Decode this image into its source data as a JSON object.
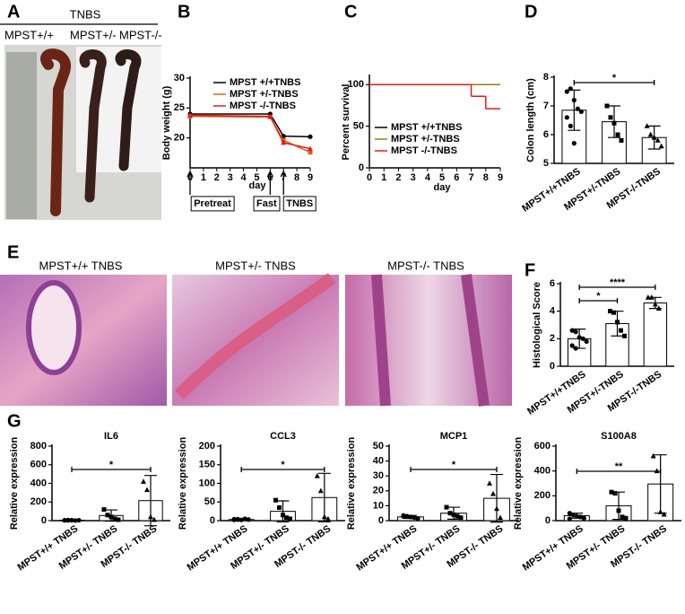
{
  "panel_labels": [
    "A",
    "B",
    "C",
    "D",
    "E",
    "F",
    "G"
  ],
  "photo": {
    "treatment": "TNBS",
    "genotypes": [
      "MPST+/+",
      "MPST+/-",
      "MPST-/-"
    ]
  },
  "histology": [
    "MPST+/+ TNBS",
    "MPST+/- TNBS",
    "MPST-/- TNBS"
  ],
  "chart_data": [
    {
      "type": "line",
      "ylabel": "Body weight (g)",
      "xlabel": "day",
      "x": [
        0,
        6,
        7,
        9
      ],
      "xlim": [
        0,
        9
      ],
      "xticks": [
        0,
        1,
        2,
        3,
        4,
        5,
        6,
        7,
        8,
        9
      ],
      "ylim": [
        15,
        30
      ],
      "yticks": [
        20,
        25,
        30
      ],
      "series": [
        {
          "name": "MPST +/+TNBS",
          "color": "#000000",
          "values": [
            24,
            24,
            20.3,
            20.2
          ]
        },
        {
          "name": "MPST +/-TNBS",
          "color": "#e0601c",
          "values": [
            23.6,
            23.5,
            19.6,
            17.6
          ]
        },
        {
          "name": "MPST -/-TNBS",
          "color": "#e31a1c",
          "values": [
            23.8,
            23.6,
            19.2,
            18.2
          ]
        }
      ],
      "annotations": [
        {
          "x": 0,
          "label": "Pretreat"
        },
        {
          "x": 6,
          "label": "Fast"
        },
        {
          "x": 7,
          "label": "TNBS"
        }
      ]
    },
    {
      "type": "line",
      "step": true,
      "ylabel": "Percent survival",
      "xlabel": "day",
      "x": [
        0,
        7,
        8,
        9
      ],
      "xlim": [
        0,
        9
      ],
      "xticks": [
        0,
        1,
        2,
        3,
        4,
        5,
        6,
        7,
        8,
        9
      ],
      "ylim": [
        0,
        110
      ],
      "yticks": [
        0,
        50,
        100
      ],
      "series": [
        {
          "name": "MPST +/+TNBS",
          "color": "#000000",
          "values": [
            100,
            100,
            100,
            100
          ]
        },
        {
          "name": "MPST +/-TNBS",
          "color": "#9a7d0a",
          "values": [
            100,
            100,
            100,
            100
          ]
        },
        {
          "name": "MPST -/-TNBS",
          "color": "#e31a1c",
          "values": [
            100,
            86,
            71,
            71
          ]
        }
      ]
    },
    {
      "type": "bar",
      "ylabel": "Colon length (cm)",
      "categories": [
        "MPST+/+TNBS",
        "MPST+/-TNBS",
        "MPST-/-TNBS"
      ],
      "values": [
        6.85,
        6.45,
        5.9
      ],
      "errors": [
        0.7,
        0.55,
        0.4
      ],
      "points": [
        [
          7.5,
          7.6,
          7.2,
          6.9,
          6.8,
          6.6,
          6.3,
          5.7
        ],
        [
          7.0,
          6.6,
          6.4,
          6.0,
          5.8
        ],
        [
          6.3,
          6.0,
          5.9,
          5.8,
          5.6
        ]
      ],
      "ylim": [
        5,
        8
      ],
      "yticks": [
        5,
        6,
        7,
        8
      ],
      "significance": [
        {
          "between": [
            "MPST+/+TNBS",
            "MPST-/-TNBS"
          ],
          "label": "*"
        }
      ]
    },
    {
      "type": "bar",
      "ylabel": "Histological Score",
      "categories": [
        "MPST+/+TNBS",
        "MPST+/-TNBS",
        "MPST-/-TNBS"
      ],
      "values": [
        2,
        3.1,
        4.6
      ],
      "errors": [
        0.7,
        0.9,
        0.4
      ],
      "points": [
        [
          2.6,
          2.5,
          2.1,
          2,
          1.8,
          1.5,
          1.3
        ],
        [
          4,
          3.9,
          3.2,
          2.6,
          2.2
        ],
        [
          5,
          5,
          4.5,
          4.2
        ]
      ],
      "ylim": [
        0,
        6
      ],
      "yticks": [
        0,
        2,
        4,
        6
      ],
      "significance": [
        {
          "between": [
            "MPST+/+TNBS",
            "MPST+/-TNBS"
          ],
          "label": "*"
        },
        {
          "between": [
            "MPST+/+TNBS",
            "MPST-/-TNBS"
          ],
          "label": "****"
        }
      ]
    },
    {
      "type": "bar",
      "title": "IL6",
      "ylabel": "Relative expression",
      "categories": [
        "MPST+/+ TNBS",
        "MPST+/- TNBS",
        "MPST-/- TNBS"
      ],
      "values": [
        5,
        55,
        215
      ],
      "errors": [
        5,
        60,
        270
      ],
      "points": [
        [
          4,
          3,
          5,
          2,
          4,
          3,
          6
        ],
        [
          120,
          60,
          40,
          20,
          10
        ],
        [
          420,
          330,
          40,
          10
        ]
      ],
      "ylim": [
        0,
        800
      ],
      "yticks": [
        0,
        200,
        400,
        600,
        800
      ],
      "significance": [
        {
          "between": [
            "MPST+/+ TNBS",
            "MPST-/- TNBS"
          ],
          "label": "*"
        }
      ]
    },
    {
      "type": "bar",
      "title": "CCL3",
      "ylabel": "Relative expression",
      "categories": [
        "MPST+/+ TNBS",
        "MPST+/- TNBS",
        "MPST-/- TNBS"
      ],
      "values": [
        3,
        25,
        62
      ],
      "errors": [
        2,
        28,
        65
      ],
      "points": [
        [
          4,
          3,
          2,
          5,
          3,
          2,
          4
        ],
        [
          55,
          35,
          15,
          8,
          5
        ],
        [
          120,
          80,
          10,
          5
        ]
      ],
      "ylim": [
        0,
        200
      ],
      "yticks": [
        0,
        50,
        100,
        150,
        200
      ],
      "significance": [
        {
          "between": [
            "MPST+/+ TNBS",
            "MPST-/- TNBS"
          ],
          "label": "*"
        }
      ]
    },
    {
      "type": "bar",
      "title": "MCP1",
      "ylabel": "Relative expression",
      "categories": [
        "MPST+/+ TNBS",
        "MPST+/- TNBS",
        "MPST-/- TNBS"
      ],
      "values": [
        2.5,
        5,
        15
      ],
      "errors": [
        1,
        4,
        16
      ],
      "points": [
        [
          3.5,
          3,
          2.5,
          2,
          1.5,
          2.8
        ],
        [
          9,
          5,
          4,
          3,
          2
        ],
        [
          25,
          18,
          8,
          2
        ]
      ],
      "ylim": [
        0,
        50
      ],
      "yticks": [
        0,
        10,
        20,
        30,
        40,
        50
      ],
      "significance": [
        {
          "between": [
            "MPST+/+ TNBS",
            "MPST-/- TNBS"
          ],
          "label": "*"
        }
      ]
    },
    {
      "type": "bar",
      "title": "S100A8",
      "ylabel": "Relative expression",
      "categories": [
        "MPST+/+ TNBS",
        "MPST+/- TNBS",
        "MPST-/- TNBS"
      ],
      "values": [
        40,
        120,
        295
      ],
      "errors": [
        20,
        110,
        235
      ],
      "points": [
        [
          60,
          45,
          35,
          30,
          20,
          15
        ],
        [
          230,
          220,
          80,
          30,
          20
        ],
        [
          520,
          400,
          70,
          50
        ]
      ],
      "ylim": [
        0,
        600
      ],
      "yticks": [
        0,
        200,
        400,
        600
      ],
      "significance": [
        {
          "between": [
            "MPST+/+ TNBS",
            "MPST-/- TNBS"
          ],
          "label": "**"
        }
      ]
    }
  ]
}
